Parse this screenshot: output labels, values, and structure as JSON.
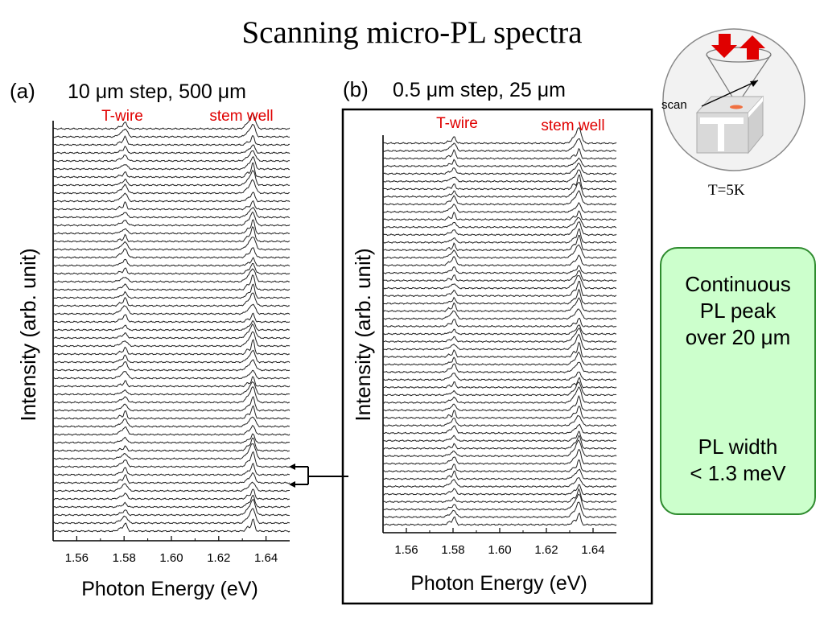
{
  "title": "Scanning micro-PL spectra",
  "colors": {
    "peak_label": "#e00000",
    "callout_bg": "#ccffcc",
    "callout_border": "#2e8b2e",
    "arrow": "#e00000"
  },
  "schematic": {
    "scan_label": "scan",
    "temperature": "T=5K",
    "icons": [
      "excitation-arrow-down-icon",
      "emission-arrow-up-icon"
    ]
  },
  "callout": {
    "line1": "Continuous",
    "line2": "PL peak",
    "line3": "over 20 μm",
    "line4": "PL width",
    "line5": "< 1.3 meV"
  },
  "chart_data": [
    {
      "type": "line",
      "panel": "(a)",
      "title": "10 μm step, 500 μm",
      "xlabel": "Photon Energy (eV)",
      "ylabel": "Intensity (arb. unit)",
      "xlim": [
        1.55,
        1.65
      ],
      "xticks": [
        "1.56",
        "1.58",
        "1.60",
        "1.62",
        "1.64"
      ],
      "peak_labels": [
        {
          "text": "T-wire",
          "x": 1.58
        },
        {
          "text": "stem well",
          "x": 1.634
        }
      ],
      "trace_count": 51,
      "series": [
        {
          "peak_x": 1.5805,
          "width": 0.0011
        },
        {
          "peak_x": 1.6345,
          "width": 0.0012
        }
      ]
    },
    {
      "type": "line",
      "panel": "(b)",
      "title": "0.5 μm step, 25 μm",
      "xlabel": "Photon Energy (eV)",
      "ylabel": "Intensity (arb. unit)",
      "xlim": [
        1.55,
        1.65
      ],
      "xticks": [
        "1.56",
        "1.58",
        "1.60",
        "1.62",
        "1.64"
      ],
      "peak_labels": [
        {
          "text": "T-wire",
          "x": 1.58
        },
        {
          "text": "stem well",
          "x": 1.634
        }
      ],
      "trace_count": 51,
      "series": [
        {
          "peak_x": 1.5805,
          "width": 0.001
        },
        {
          "peak_x": 1.634,
          "width": 0.0012
        }
      ]
    }
  ]
}
